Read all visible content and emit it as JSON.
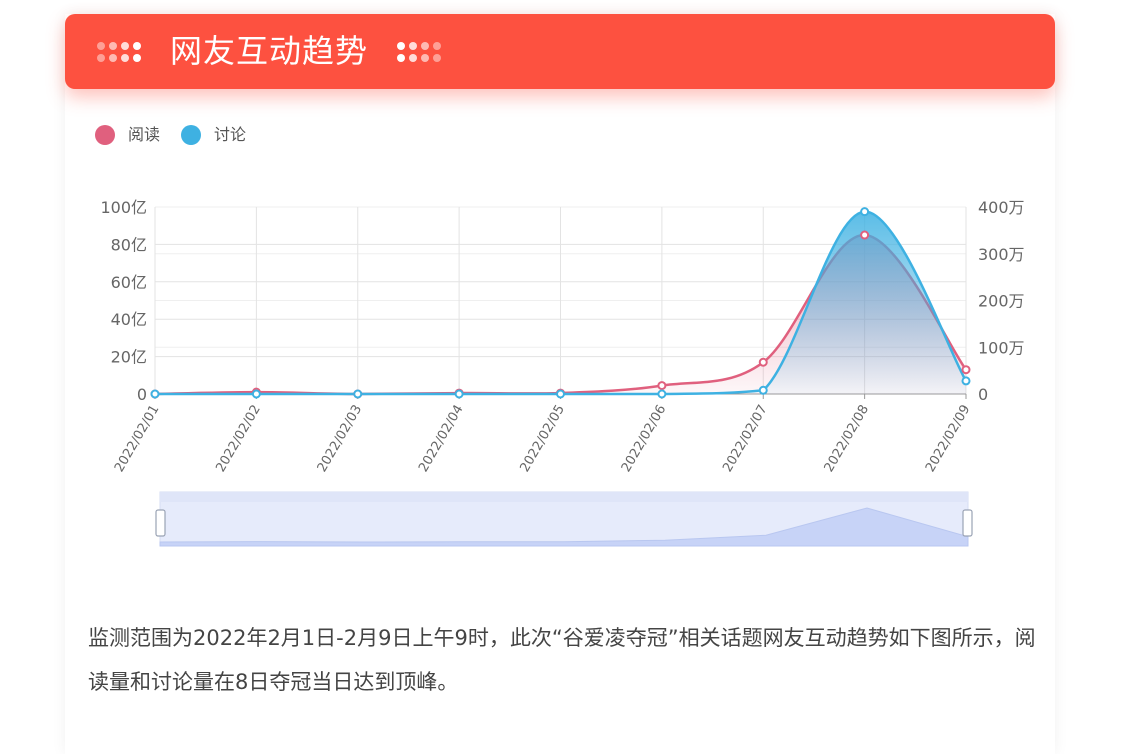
{
  "header": {
    "title": "网友互动趋势"
  },
  "colors": {
    "banner": "#fd5140",
    "read": "#e0607e",
    "discuss": "#3eb1e2",
    "slider": "#c7d3f7"
  },
  "legend": [
    {
      "label": "阅读",
      "color": "#e0607e"
    },
    {
      "label": "讨论",
      "color": "#3eb1e2"
    }
  ],
  "chart_data": {
    "type": "area",
    "categories": [
      "2022/02/01",
      "2022/02/02",
      "2022/02/03",
      "2022/02/04",
      "2022/02/05",
      "2022/02/06",
      "2022/02/07",
      "2022/02/08",
      "2022/02/09"
    ],
    "series": [
      {
        "name": "阅读",
        "axis": "left",
        "values": [
          0,
          1,
          0,
          0.5,
          0.5,
          4.5,
          17,
          85,
          13
        ]
      },
      {
        "name": "讨论",
        "axis": "right",
        "values": [
          0,
          0,
          0,
          0,
          0,
          0,
          8,
          390,
          28
        ]
      }
    ],
    "y_left": {
      "ticks": [
        "100亿",
        "80亿",
        "60亿",
        "40亿",
        "20亿",
        "0"
      ],
      "range": [
        0,
        100
      ]
    },
    "y_right": {
      "ticks": [
        "400万",
        "300万",
        "200万",
        "100万",
        "0"
      ],
      "range": [
        0,
        400
      ]
    },
    "grid": true,
    "legend_position": "top-left",
    "data_zoom": {
      "start": 0,
      "end": 100
    }
  },
  "description": "监测范围为2022年2月1日-2月9日上午9时，此次“谷爱凌夺冠”相关话题网友互动趋势如下图所示，阅读量和讨论量在8日夺冠当日达到顶峰。"
}
